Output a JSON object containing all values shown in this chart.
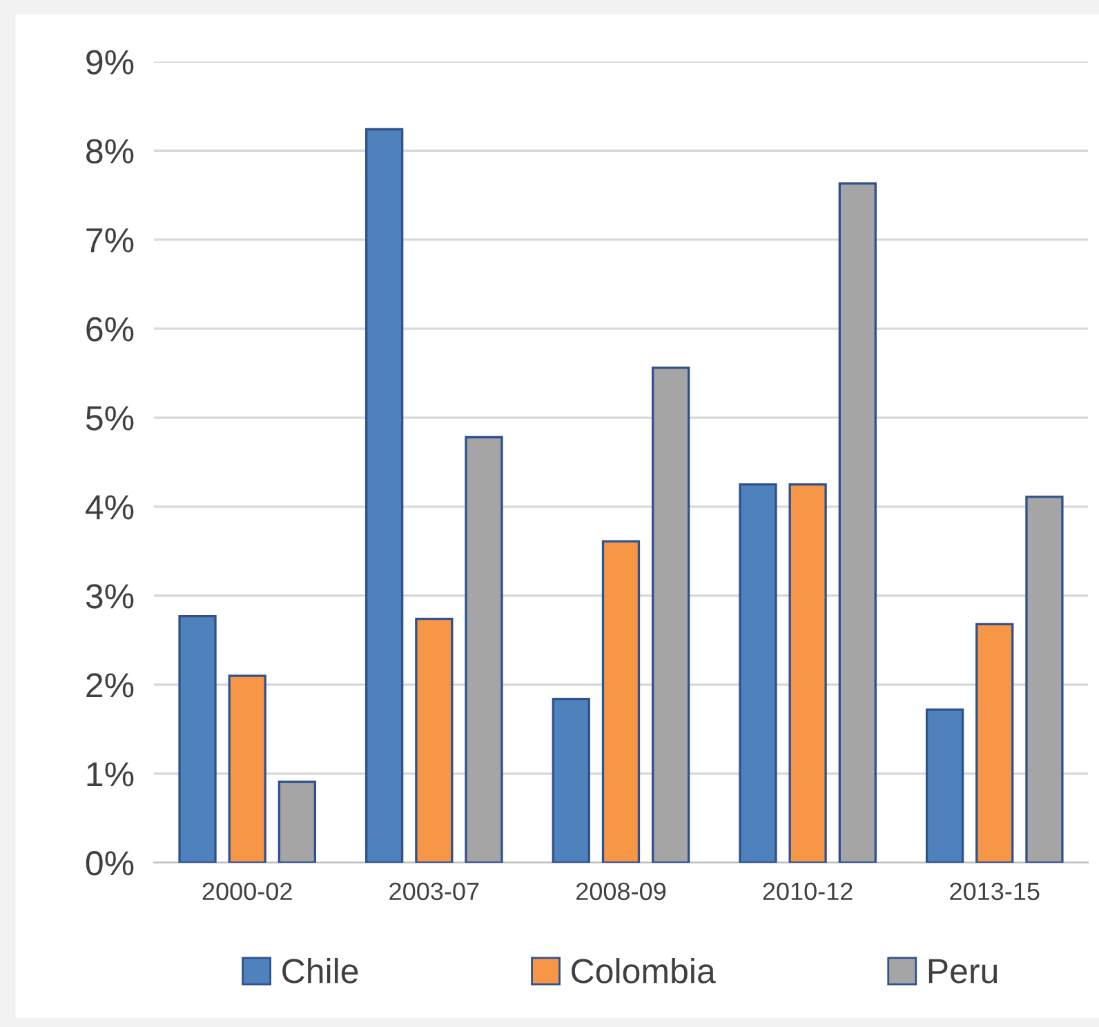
{
  "chart_data": {
    "type": "bar",
    "categories": [
      "2000-02",
      "2003-07",
      "2008-09",
      "2010-12",
      "2013-15"
    ],
    "series": [
      {
        "name": "Chile",
        "color": "#4f81bd",
        "values": [
          2.77,
          8.24,
          1.84,
          4.25,
          1.72
        ]
      },
      {
        "name": "Colombia",
        "color": "#f79646",
        "values": [
          2.1,
          2.74,
          3.61,
          4.25,
          2.68
        ]
      },
      {
        "name": "Peru",
        "color": "#a5a5a5",
        "values": [
          0.91,
          4.78,
          5.56,
          7.63,
          4.11
        ]
      }
    ],
    "ylim": [
      0,
      9
    ],
    "yticks": [
      {
        "value": 0,
        "label": "0%"
      },
      {
        "value": 1,
        "label": "1%"
      },
      {
        "value": 2,
        "label": "2%"
      },
      {
        "value": 3,
        "label": "3%"
      },
      {
        "value": 4,
        "label": "4%"
      },
      {
        "value": 5,
        "label": "5%"
      },
      {
        "value": 6,
        "label": "6%"
      },
      {
        "value": 7,
        "label": "7%"
      },
      {
        "value": 8,
        "label": "8%"
      },
      {
        "value": 9,
        "label": "9%"
      }
    ],
    "grid": "y",
    "legend": "bottom"
  }
}
